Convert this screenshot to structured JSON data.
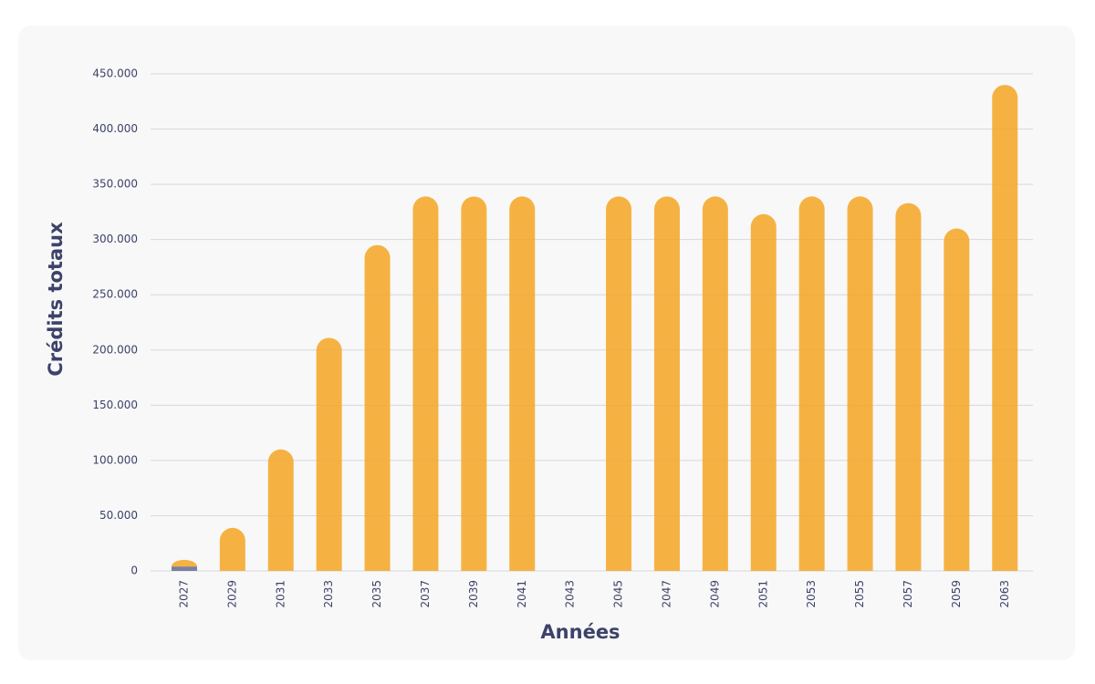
{
  "chart_data": {
    "type": "bar",
    "stacked": true,
    "x_label": "Années",
    "y_label": "Crédits totaux",
    "categories": [
      "2027",
      "2029",
      "2031",
      "2033",
      "2035",
      "2037",
      "2039",
      "2041",
      "2043",
      "2045",
      "2047",
      "2049",
      "2051",
      "2053",
      "2055",
      "2057",
      "2059",
      "2063"
    ],
    "series": [
      {
        "color": "#7c7f9e",
        "values": [
          4000,
          0,
          0,
          0,
          0,
          0,
          0,
          0,
          null,
          0,
          0,
          0,
          0,
          0,
          0,
          0,
          0,
          0
        ]
      },
      {
        "color": "#f5a623",
        "values": [
          6000,
          39000,
          110000,
          211000,
          295000,
          339000,
          339000,
          339000,
          null,
          339000,
          339000,
          339000,
          323000,
          339000,
          339000,
          333000,
          310000,
          440000
        ]
      }
    ],
    "ylim": [
      0,
      450000
    ],
    "yticks": [
      0,
      {
        "value": 50000,
        "label": "50.000"
      },
      {
        "value": 100000,
        "label": "100.000"
      },
      {
        "value": 150000,
        "label": "150.000"
      },
      {
        "value": 200000,
        "label": "200.000"
      },
      {
        "value": 250000,
        "label": "250.000"
      },
      {
        "value": 300000,
        "label": "300.000"
      },
      {
        "value": 350000,
        "label": "350.000"
      },
      {
        "value": 400000,
        "label": "400.000"
      },
      {
        "value": 450000,
        "label": "450.000"
      }
    ],
    "grid": true
  }
}
